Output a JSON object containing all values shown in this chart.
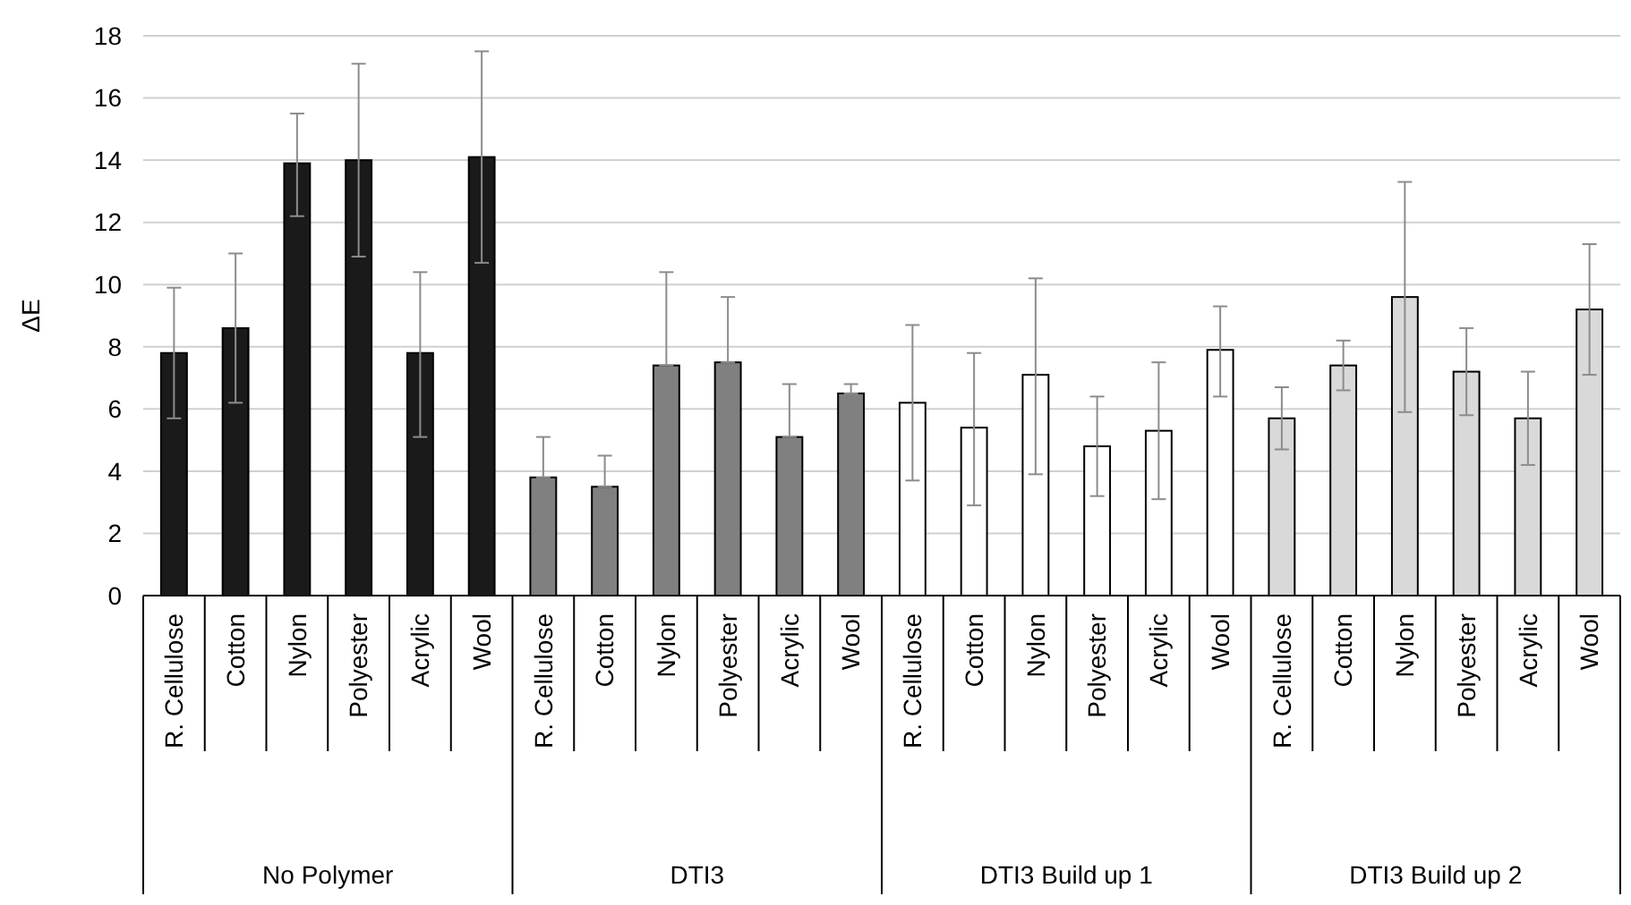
{
  "chart_data": {
    "type": "bar",
    "ylabel": "ΔE",
    "categories": [
      "R. Cellulose",
      "Cotton",
      "Nylon",
      "Polyester",
      "Acrylic",
      "Wool",
      "R. Cellulose",
      "Cotton",
      "Nylon",
      "Polyester",
      "Acrylic",
      "Wool",
      "R. Cellulose",
      "Cotton",
      "Nylon",
      "Polyester",
      "Acrylic",
      "Wool",
      "R. Cellulose",
      "Cotton",
      "Nylon",
      "Polyester",
      "Acrylic",
      "Wool"
    ],
    "values": [
      7.8,
      8.6,
      13.9,
      14.0,
      7.8,
      14.1,
      3.8,
      3.5,
      7.4,
      7.5,
      5.1,
      6.5,
      6.2,
      5.4,
      7.1,
      4.8,
      5.3,
      7.9,
      5.7,
      7.4,
      9.6,
      7.2,
      5.7,
      9.2
    ],
    "colors": [
      "#1a1a1a",
      "#1a1a1a",
      "#1a1a1a",
      "#1a1a1a",
      "#1a1a1a",
      "#1a1a1a",
      "#808080",
      "#808080",
      "#808080",
      "#808080",
      "#808080",
      "#808080",
      "#ffffff",
      "#ffffff",
      "#ffffff",
      "#ffffff",
      "#ffffff",
      "#ffffff",
      "#d9d9d9",
      "#d9d9d9",
      "#d9d9d9",
      "#d9d9d9",
      "#d9d9d9",
      "#d9d9d9"
    ],
    "errors": [
      [
        5.7,
        9.9
      ],
      [
        6.2,
        11.0
      ],
      [
        12.2,
        15.5
      ],
      [
        10.9,
        17.1
      ],
      [
        5.1,
        10.4
      ],
      [
        10.7,
        17.5
      ],
      [
        3.8,
        5.1
      ],
      [
        3.5,
        4.5
      ],
      [
        7.4,
        10.4
      ],
      [
        7.5,
        9.6
      ],
      [
        5.1,
        6.8
      ],
      [
        6.5,
        6.8
      ],
      [
        3.7,
        8.7
      ],
      [
        2.9,
        7.8
      ],
      [
        3.9,
        10.2
      ],
      [
        3.2,
        6.4
      ],
      [
        3.1,
        7.5
      ],
      [
        6.4,
        9.3
      ],
      [
        4.7,
        6.7
      ],
      [
        6.6,
        8.2
      ],
      [
        5.9,
        13.3
      ],
      [
        5.8,
        8.6
      ],
      [
        4.2,
        7.2
      ],
      [
        7.1,
        11.3
      ]
    ],
    "annotations": [
      "No Polymer",
      "DTI3",
      "DTI3 Build up 1",
      "DTI3 Build up 2"
    ],
    "ylim": [
      0,
      18
    ],
    "yticks": [
      0,
      2,
      4,
      6,
      8,
      10,
      12,
      14,
      16,
      18
    ],
    "grid": "y"
  }
}
